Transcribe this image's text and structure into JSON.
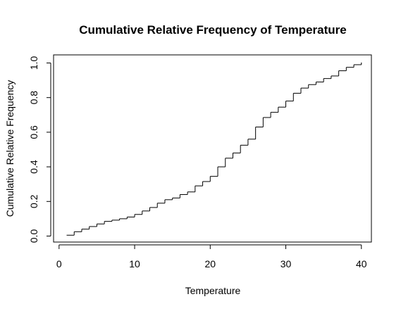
{
  "chart_data": {
    "type": "line",
    "step": true,
    "title": "Cumulative Relative Frequency of Temperature",
    "xlabel": "Temperature",
    "ylabel": "Cumulative Relative Frequency",
    "xlim": [
      0,
      41
    ],
    "ylim": [
      0,
      1
    ],
    "xticks": [
      0,
      10,
      20,
      30,
      40
    ],
    "xtick_labels": [
      "0",
      "10",
      "20",
      "30",
      "40"
    ],
    "yticks": [
      0,
      0.2,
      0.4,
      0.6,
      0.8,
      1.0
    ],
    "ytick_labels": [
      "0.0",
      "0.2",
      "0.4",
      "0.6",
      "0.8",
      "1.0"
    ],
    "grid": false,
    "series": [
      {
        "x": [
          1,
          2,
          3,
          4,
          5,
          6,
          7,
          8,
          9,
          10,
          11,
          12,
          13,
          14,
          15,
          16,
          17,
          18,
          19,
          20,
          21,
          22,
          23,
          24,
          25,
          26,
          27,
          28,
          29,
          30,
          31,
          32,
          33,
          34,
          35,
          36,
          37,
          38,
          39,
          40
        ],
        "y": [
          0.005,
          0.025,
          0.04,
          0.055,
          0.07,
          0.085,
          0.092,
          0.1,
          0.11,
          0.125,
          0.145,
          0.165,
          0.19,
          0.21,
          0.22,
          0.24,
          0.255,
          0.29,
          0.315,
          0.345,
          0.4,
          0.45,
          0.48,
          0.525,
          0.56,
          0.63,
          0.685,
          0.715,
          0.745,
          0.78,
          0.825,
          0.855,
          0.875,
          0.89,
          0.91,
          0.925,
          0.955,
          0.975,
          0.99,
          1.0
        ]
      }
    ]
  }
}
